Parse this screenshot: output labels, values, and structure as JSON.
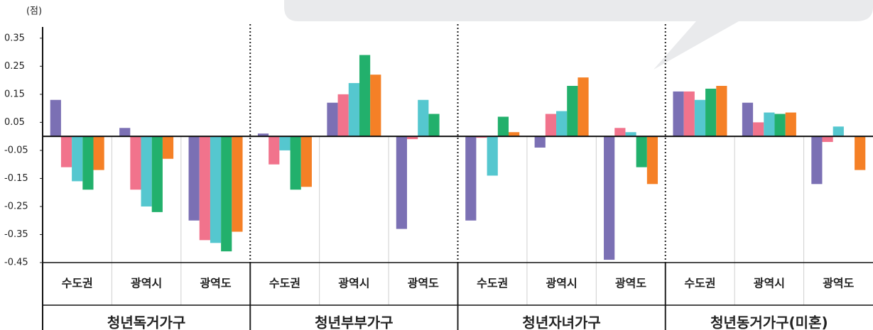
{
  "chart_data": {
    "type": "bar",
    "unit_label": "(점)",
    "groups": [
      "청년독거가구",
      "청년부부가구",
      "청년자녀가구",
      "청년동거가구(미혼)"
    ],
    "categories": [
      "수도권",
      "광역시",
      "광역도",
      "수도권",
      "광역시",
      "광역도",
      "수도권",
      "광역시",
      "광역도",
      "수도권",
      "광역시",
      "광역도"
    ],
    "series": [
      {
        "color": "#7b70b4",
        "values": [
          0.13,
          0.03,
          -0.3,
          0.01,
          0.12,
          -0.33,
          -0.3,
          -0.04,
          -0.44,
          0.16,
          0.12,
          -0.17
        ]
      },
      {
        "color": "#f1738c",
        "values": [
          -0.11,
          -0.19,
          -0.37,
          -0.1,
          0.15,
          -0.01,
          -0.005,
          0.08,
          0.03,
          0.16,
          0.05,
          -0.02
        ]
      },
      {
        "color": "#55c7cf",
        "values": [
          -0.16,
          -0.25,
          -0.38,
          -0.05,
          0.19,
          0.13,
          -0.14,
          0.09,
          0.015,
          0.13,
          0.085,
          0.035
        ]
      },
      {
        "color": "#22b06c",
        "values": [
          -0.19,
          -0.27,
          -0.41,
          -0.19,
          0.29,
          0.08,
          0.07,
          0.18,
          -0.11,
          0.17,
          0.08,
          null
        ]
      },
      {
        "color": "#f58026",
        "values": [
          -0.12,
          -0.08,
          -0.34,
          -0.18,
          0.22,
          null,
          0.015,
          0.21,
          -0.17,
          0.18,
          0.085,
          -0.12
        ]
      }
    ],
    "ylim": [
      -0.45,
      0.39
    ],
    "yticks": [
      0.35,
      0.25,
      0.15,
      0.05,
      -0.05,
      -0.15,
      -0.25,
      -0.35,
      -0.45
    ]
  }
}
